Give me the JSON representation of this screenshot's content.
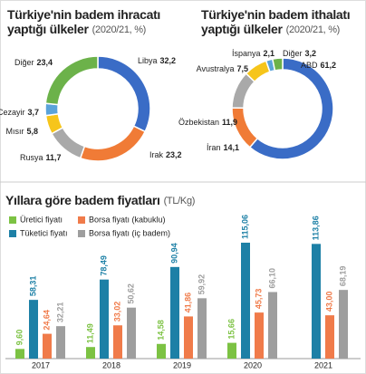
{
  "chart_data": [
    {
      "type": "donut",
      "title_lines": [
        "Türkiye'nin badem ihracatı",
        "yaptığı ülkeler"
      ],
      "subtitle": "(2020/21, %)",
      "categories": [
        "Libya",
        "Irak",
        "Rusya",
        "Mısır",
        "Cezayir",
        "Diğer"
      ],
      "values": [
        32.2,
        23.2,
        11.7,
        5.8,
        3.7,
        23.4
      ],
      "value_labels": [
        "32,2",
        "23,2",
        "11,7",
        "5,8",
        "3,7",
        "23,4"
      ],
      "colors": [
        "#3a6cc6",
        "#f07b36",
        "#a9a9a9",
        "#f6c51b",
        "#5aa3da",
        "#6cb24a"
      ]
    },
    {
      "type": "donut",
      "title_lines": [
        "Türkiye'nin badem ithalatı",
        "yaptığı ülkeler"
      ],
      "subtitle": "(2020/21, %)",
      "categories": [
        "ABD",
        "İran",
        "Özbekistan",
        "Avustralya",
        "İspanya",
        "Diğer"
      ],
      "values": [
        61.2,
        14.1,
        11.9,
        7.5,
        2.1,
        3.2
      ],
      "value_labels": [
        "61,2",
        "14,1",
        "11,9",
        "7,5",
        "2,1",
        "3,2"
      ],
      "colors": [
        "#3a6cc6",
        "#f07b36",
        "#a9a9a9",
        "#f6c51b",
        "#5aa3da",
        "#6cb24a"
      ]
    },
    {
      "type": "bar",
      "title": "Yıllara göre badem fiyatları",
      "subtitle": "(TL/Kg)",
      "categories": [
        "2017",
        "2018",
        "2019",
        "2020",
        "2021"
      ],
      "series": [
        {
          "name": "Üretici fiyatı",
          "color": "#7cc243",
          "values": [
            9.6,
            11.49,
            14.58,
            15.66,
            null
          ],
          "value_labels": [
            "9,60",
            "11,49",
            "14,58",
            "15,66",
            null
          ]
        },
        {
          "name": "Tüketici fiyatı",
          "color": "#1d80a6",
          "values": [
            58.31,
            78.49,
            90.94,
            115.06,
            113.86
          ],
          "value_labels": [
            "58,31",
            "78,49",
            "90,94",
            "115,06",
            "113,86"
          ]
        },
        {
          "name": "Borsa fiyatı (kabuklu)",
          "color": "#f07b4a",
          "values": [
            24.64,
            33.02,
            41.86,
            45.73,
            43.0
          ],
          "value_labels": [
            "24,64",
            "33,02",
            "41,86",
            "45,73",
            "43,00"
          ]
        },
        {
          "name": "Borsa fiyatı (iç badem)",
          "color": "#9e9e9e",
          "values": [
            32.21,
            50.62,
            59.92,
            66.1,
            68.19
          ],
          "value_labels": [
            "32,21",
            "50,62",
            "59,92",
            "66,10",
            "68,19"
          ]
        }
      ]
    }
  ]
}
